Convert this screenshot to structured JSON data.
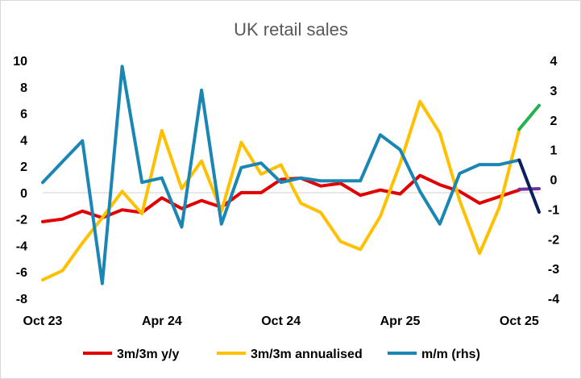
{
  "chart_data": {
    "type": "line",
    "title": "UK retail sales",
    "x_tick_labels": [
      "Oct 23",
      "Apr 24",
      "Oct 24",
      "Apr 25",
      "Oct 25"
    ],
    "x_tick_index": [
      0,
      6,
      12,
      18,
      24
    ],
    "y_left": {
      "range": [
        -8,
        10
      ],
      "ticks": [
        10,
        8,
        6,
        4,
        2,
        0,
        -2,
        -4,
        -6,
        -8
      ]
    },
    "y_right": {
      "range": [
        -4,
        4
      ],
      "ticks": [
        4,
        3,
        2,
        1,
        0,
        -1,
        -2,
        -3,
        -4
      ]
    },
    "grid": false,
    "legend_position": "bottom",
    "series": [
      {
        "name": "3m/3m y/y",
        "axis": "left",
        "color": "#e00000",
        "values": [
          -2.2,
          -2.0,
          -1.4,
          -1.9,
          -1.3,
          -1.5,
          -0.4,
          -1.2,
          -0.6,
          -1.1,
          0.0,
          0.0,
          1.0,
          1.1,
          0.5,
          0.7,
          -0.2,
          0.2,
          -0.1,
          1.3,
          0.6,
          0.1,
          -0.8,
          -0.3,
          0.2
        ]
      },
      {
        "name": "3m/3m annualised",
        "axis": "left",
        "color": "#ffc000",
        "values": [
          -6.6,
          -5.9,
          -3.8,
          -1.9,
          0.1,
          -1.6,
          4.7,
          0.3,
          2.4,
          -1.4,
          3.8,
          1.4,
          2.1,
          -0.8,
          -1.5,
          -3.7,
          -4.3,
          -1.8,
          2.2,
          6.9,
          4.5,
          -0.6,
          -4.6,
          -1.1,
          4.8
        ]
      },
      {
        "name": "m/m (rhs)",
        "axis": "right",
        "color": "#1a86b4",
        "values": [
          -0.1,
          0.6,
          1.3,
          -3.5,
          3.8,
          -0.1,
          0.05,
          -1.6,
          3.0,
          -1.5,
          0.4,
          0.55,
          -0.1,
          0.05,
          -0.05,
          -0.05,
          -0.05,
          1.5,
          1.0,
          -0.4,
          -1.5,
          0.2,
          0.5,
          0.5,
          0.65
        ]
      }
    ],
    "extensions": [
      {
        "axis": "left",
        "color": "#22b14c",
        "from": [
          24,
          4.8
        ],
        "to": [
          25,
          6.6
        ]
      },
      {
        "axis": "left",
        "color": "#7030a0",
        "from": [
          24,
          0.25
        ],
        "to": [
          25,
          0.3
        ]
      },
      {
        "axis": "right",
        "color": "#0b1f5c",
        "from": [
          24,
          0.65
        ],
        "to": [
          25,
          -1.1
        ]
      }
    ]
  }
}
